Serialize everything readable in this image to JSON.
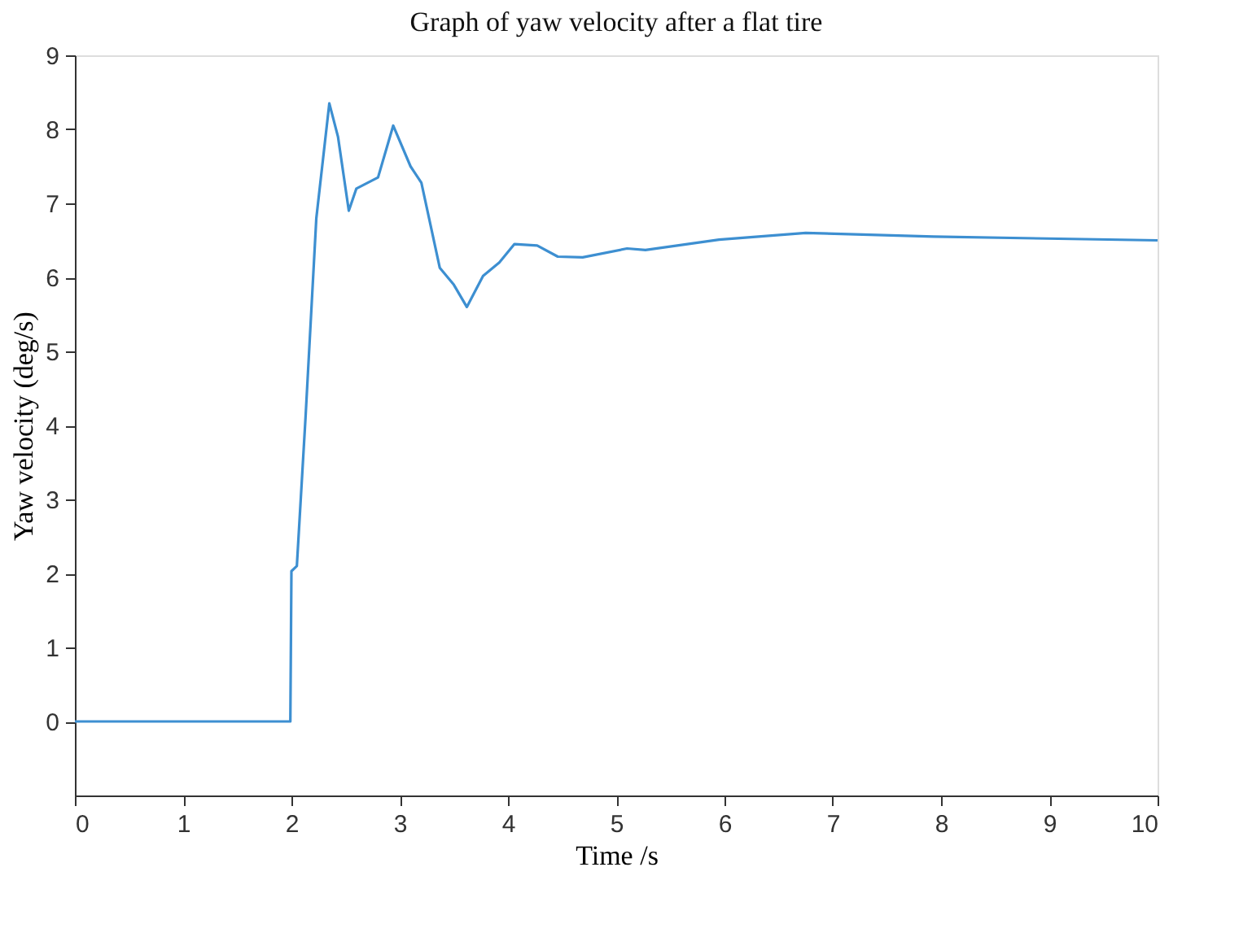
{
  "chart_data": {
    "type": "line",
    "title": "Graph of yaw velocity after a flat tire",
    "xlabel": "Time /s",
    "ylabel": "Yaw velocity (deg/s)",
    "x": [
      0,
      1.99,
      2.0,
      2.05,
      2.13,
      2.23,
      2.35,
      2.43,
      2.53,
      2.6,
      2.8,
      2.94,
      3.1,
      3.2,
      3.37,
      3.5,
      3.62,
      3.77,
      3.92,
      4.06,
      4.27,
      4.46,
      4.69,
      5.1,
      5.27,
      5.95,
      6.75,
      7.93,
      10
    ],
    "series": [
      {
        "color": "#3d8fd1",
        "values": [
          0,
          0,
          2.03,
          2.1,
          4.1,
          6.8,
          8.35,
          7.9,
          6.9,
          7.2,
          7.35,
          8.05,
          7.5,
          7.28,
          6.13,
          5.9,
          5.6,
          6.02,
          6.2,
          6.45,
          6.43,
          6.28,
          6.27,
          6.39,
          6.37,
          6.51,
          6.6,
          6.55,
          6.5
        ]
      }
    ],
    "xlim": [
      0,
      10
    ],
    "ylim": [
      -1,
      9
    ],
    "xticks": [
      0,
      1,
      2,
      3,
      4,
      5,
      6,
      7,
      8,
      9,
      10
    ],
    "yticks": [
      0,
      1,
      2,
      3,
      4,
      5,
      6,
      7,
      8,
      9
    ],
    "grid": false,
    "marker": "none",
    "line_style": "solid"
  }
}
